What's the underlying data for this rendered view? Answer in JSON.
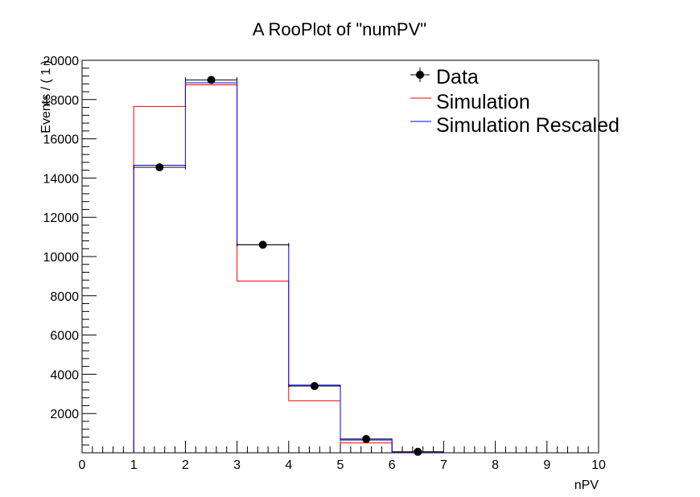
{
  "chart_data": {
    "type": "line",
    "title": "A RooPlot of \"numPV\"",
    "xlabel": "nPV",
    "ylabel": "Events / ( 1 )",
    "xlim": [
      0,
      10
    ],
    "ylim": [
      0,
      20000
    ],
    "x_ticks": [
      "0",
      "1",
      "2",
      "3",
      "4",
      "5",
      "6",
      "7",
      "8",
      "9",
      "10"
    ],
    "y_ticks": [
      "2000",
      "4000",
      "6000",
      "8000",
      "10000",
      "12000",
      "14000",
      "16000",
      "18000",
      "20000"
    ],
    "legend_position": "top-right",
    "series": [
      {
        "name": "Data",
        "style": "points",
        "color": "#000000",
        "x": [
          1.5,
          2.5,
          3.5,
          4.5,
          5.5,
          6.5
        ],
        "values": [
          14550,
          19000,
          10600,
          3400,
          700,
          50
        ],
        "errors": [
          120,
          140,
          100,
          60,
          26,
          7
        ]
      },
      {
        "name": "Simulation",
        "style": "step",
        "color": "#ff0000",
        "bin_edges": [
          1,
          2,
          3,
          4,
          5,
          6,
          7
        ],
        "values": [
          17650,
          18750,
          8750,
          2650,
          500,
          20
        ]
      },
      {
        "name": "Simulation Rescaled",
        "style": "step",
        "color": "#0000ff",
        "bin_edges": [
          1,
          2,
          3,
          4,
          5,
          6,
          7
        ],
        "values": [
          14650,
          18850,
          10600,
          3450,
          650,
          30
        ]
      }
    ]
  }
}
